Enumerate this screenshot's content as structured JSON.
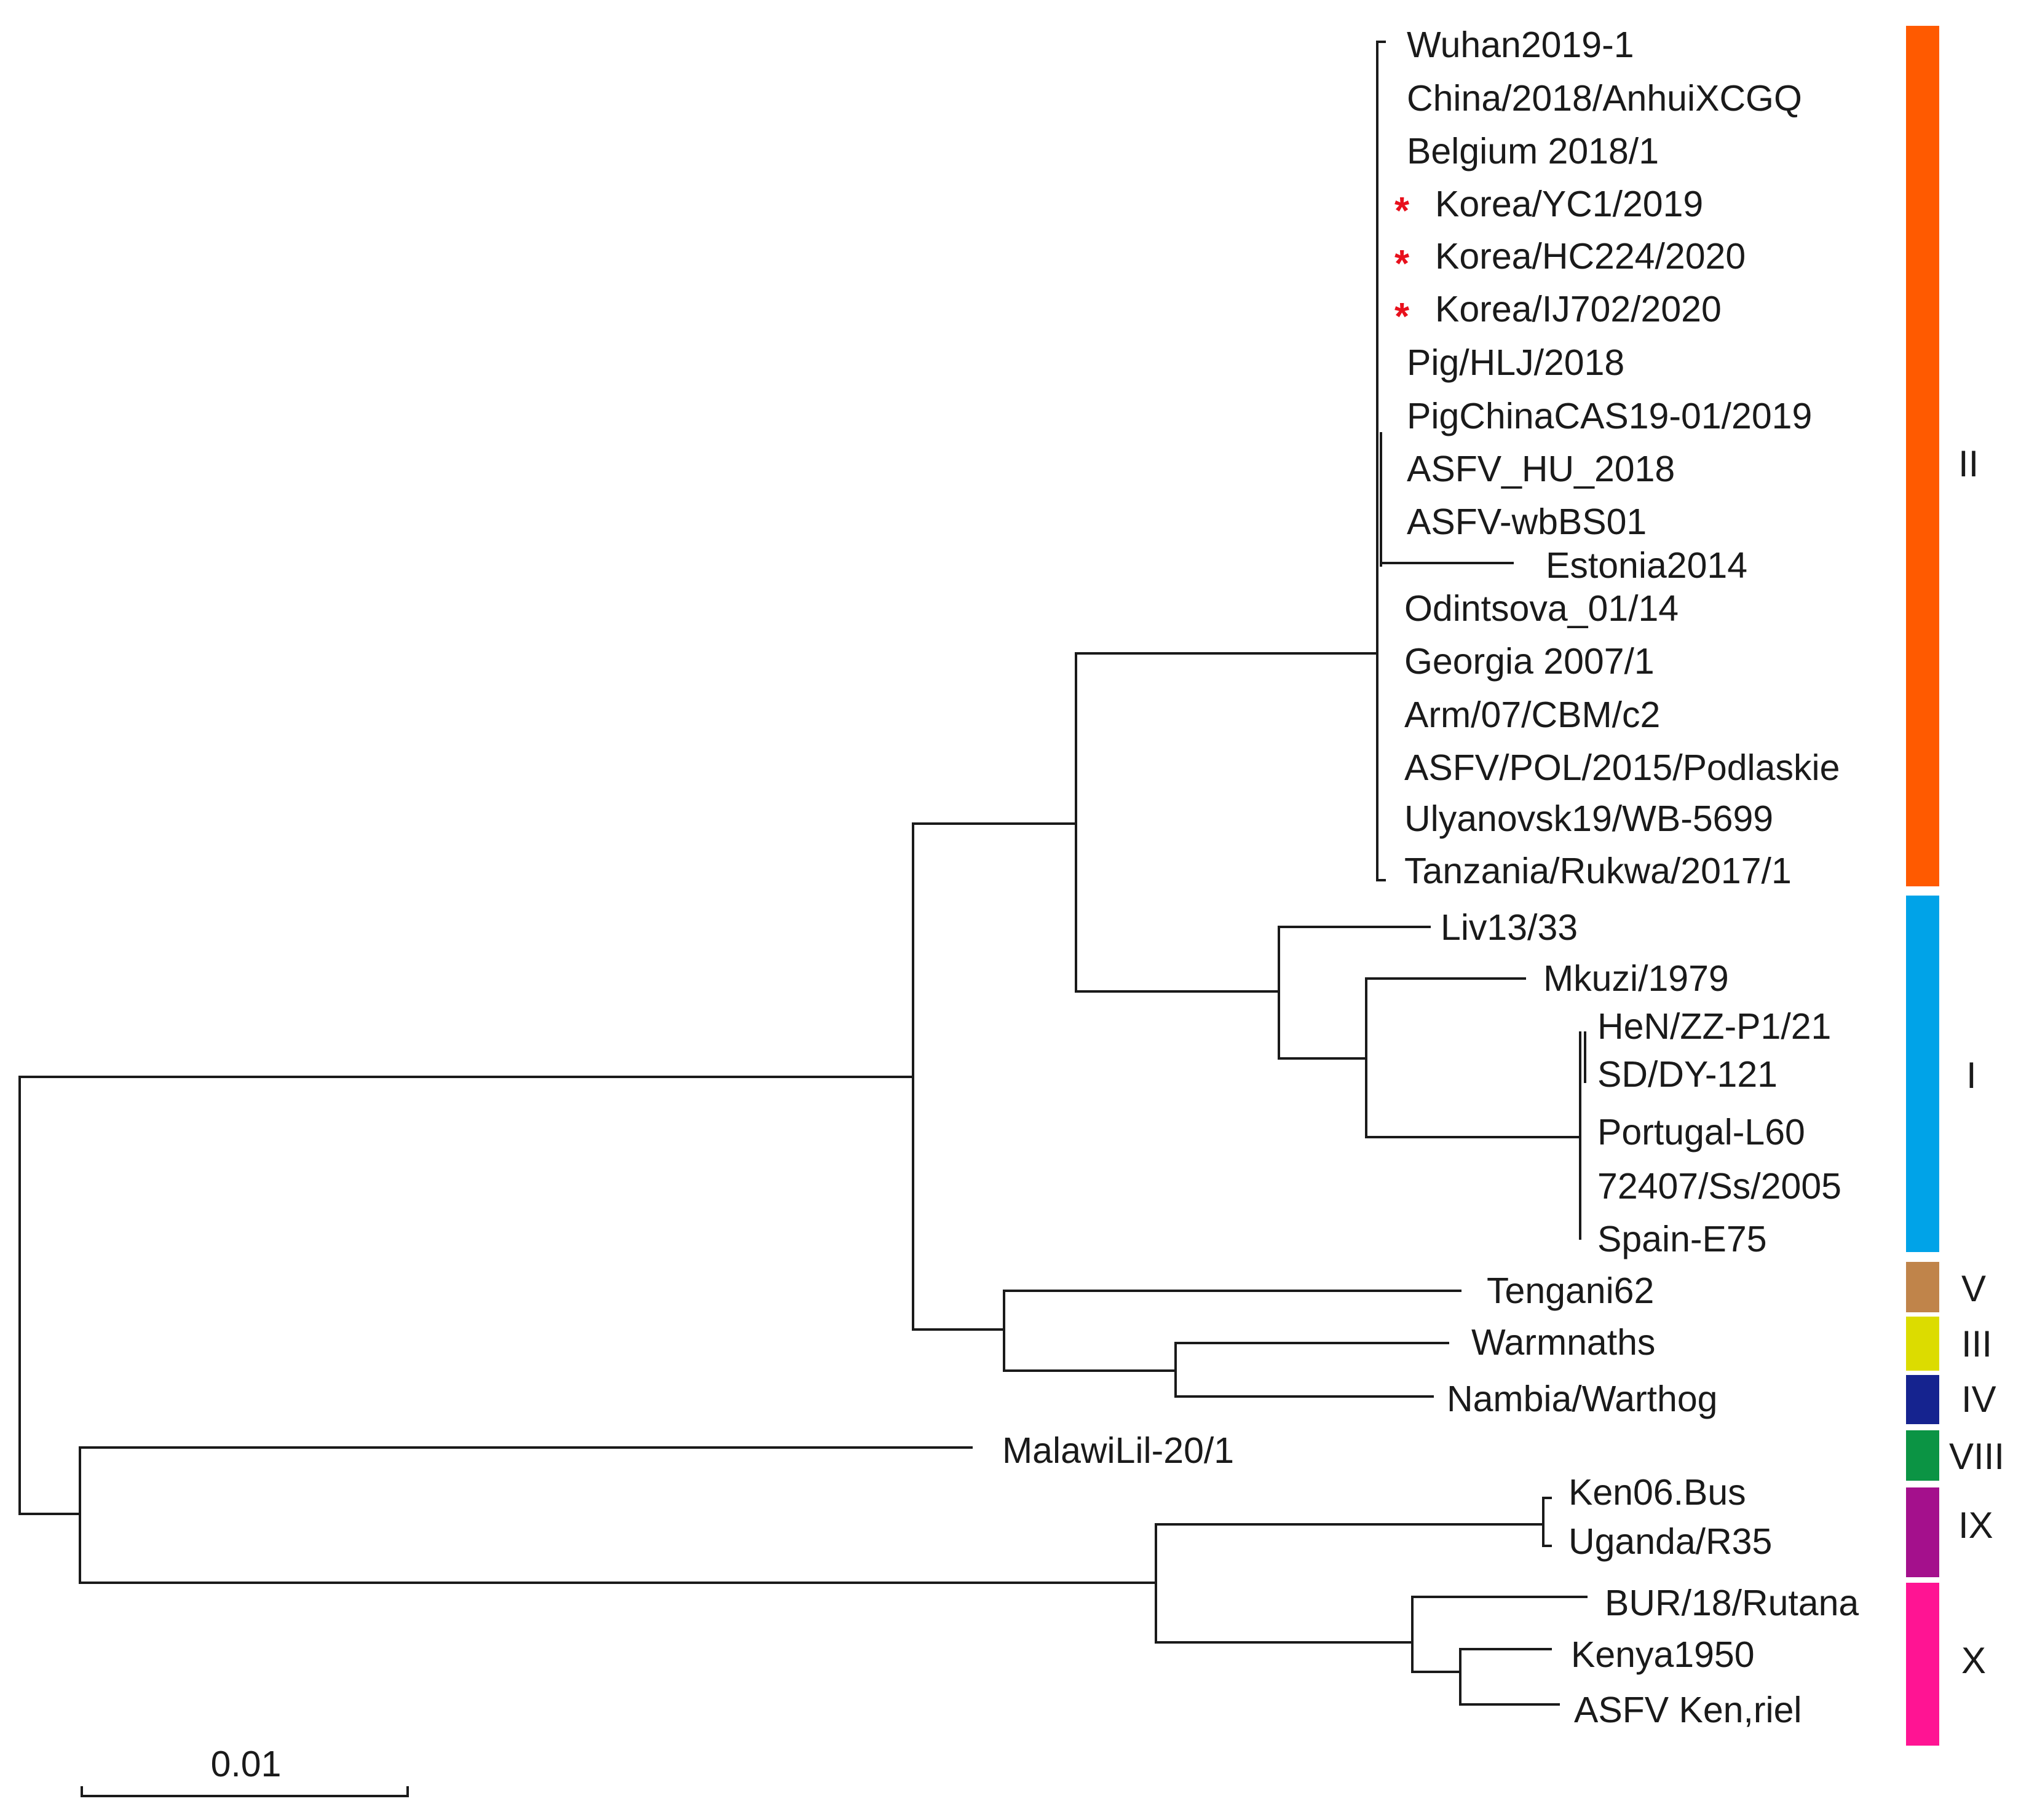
{
  "tree": {
    "leaves": [
      {
        "id": "wuhan",
        "label": "Wuhan2019-1",
        "marked": false
      },
      {
        "id": "china2018",
        "label": "China/2018/AnhuiXCGQ",
        "marked": false
      },
      {
        "id": "belgium",
        "label": "Belgium 2018/1",
        "marked": false
      },
      {
        "id": "korea-yc1",
        "label": "Korea/YC1/2019",
        "marked": true
      },
      {
        "id": "korea-hc224",
        "label": "Korea/HC224/2020",
        "marked": true
      },
      {
        "id": "korea-ij702",
        "label": "Korea/IJ702/2020",
        "marked": true
      },
      {
        "id": "pig-hlj",
        "label": "Pig/HLJ/2018",
        "marked": false
      },
      {
        "id": "pig-china-cas",
        "label": "PigChinaCAS19-01/2019",
        "marked": false
      },
      {
        "id": "asfv-hu",
        "label": "ASFV_HU_2018",
        "marked": false
      },
      {
        "id": "asfv-wbbs01",
        "label": "ASFV-wbBS01",
        "marked": false
      },
      {
        "id": "estonia",
        "label": "Estonia2014",
        "marked": false
      },
      {
        "id": "odintsova",
        "label": "Odintsova_01/14",
        "marked": false
      },
      {
        "id": "georgia",
        "label": "Georgia 2007/1",
        "marked": false
      },
      {
        "id": "arm07",
        "label": "Arm/07/CBM/c2",
        "marked": false
      },
      {
        "id": "asfv-pol",
        "label": "ASFV/POL/2015/Podlaskie",
        "marked": false
      },
      {
        "id": "ulyanovsk",
        "label": "Ulyanovsk19/WB-5699",
        "marked": false
      },
      {
        "id": "tanzania",
        "label": "Tanzania/Rukwa/2017/1",
        "marked": false
      },
      {
        "id": "liv13",
        "label": "Liv13/33",
        "marked": false
      },
      {
        "id": "mkuzi",
        "label": "Mkuzi/1979",
        "marked": false
      },
      {
        "id": "hen-zz",
        "label": "HeN/ZZ-P1/21",
        "marked": false
      },
      {
        "id": "sd-dy",
        "label": "SD/DY-121",
        "marked": false
      },
      {
        "id": "portugal",
        "label": "Portugal-L60",
        "marked": false
      },
      {
        "id": "ss2005",
        "label": "72407/Ss/2005",
        "marked": false
      },
      {
        "id": "spain",
        "label": "Spain-E75",
        "marked": false
      },
      {
        "id": "tengani",
        "label": "Tengani62",
        "marked": false
      },
      {
        "id": "warmnaths",
        "label": "Warmnaths",
        "marked": false
      },
      {
        "id": "nambia",
        "label": "Nambia/Warthog",
        "marked": false
      },
      {
        "id": "malawi",
        "label": "MalawiLil-20/1",
        "marked": false
      },
      {
        "id": "ken06",
        "label": "Ken06.Bus",
        "marked": false
      },
      {
        "id": "uganda",
        "label": "Uganda/R35",
        "marked": false
      },
      {
        "id": "bur18",
        "label": "BUR/18/Rutana",
        "marked": false
      },
      {
        "id": "kenya1950",
        "label": "Kenya1950",
        "marked": false
      },
      {
        "id": "asfv-ken",
        "label": "ASFV Ken,riel",
        "marked": false
      }
    ],
    "marker": {
      "glyph": "*",
      "color": "#e8101c"
    },
    "genotypes": [
      {
        "label": "II",
        "color": "#ff5a00"
      },
      {
        "label": "I",
        "color": "#00a3e8"
      },
      {
        "label": "V",
        "color": "#c0844a"
      },
      {
        "label": "III",
        "color": "#dcdc00"
      },
      {
        "label": "IV",
        "color": "#15238f"
      },
      {
        "label": "VIII",
        "color": "#0b9444"
      },
      {
        "label": "IX",
        "color": "#a4108c"
      },
      {
        "label": "X",
        "color": "#ff1493"
      }
    ],
    "scale_bar": {
      "label": "0.01"
    }
  }
}
